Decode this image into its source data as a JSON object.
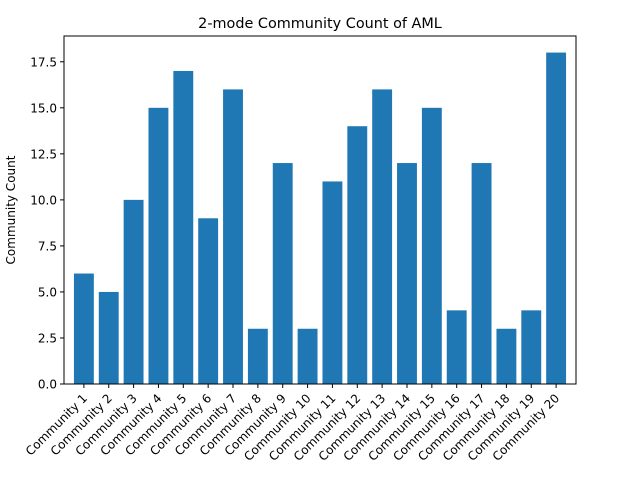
{
  "chart_data": {
    "type": "bar",
    "title": "2-mode Community Count of AML",
    "xlabel": "",
    "ylabel": "Community Count",
    "categories": [
      "Community 1",
      "Community 2",
      "Community 3",
      "Community 4",
      "Community 5",
      "Community 6",
      "Community 7",
      "Community 8",
      "Community 9",
      "Community 10",
      "Community 11",
      "Community 12",
      "Community 13",
      "Community 14",
      "Community 15",
      "Community 16",
      "Community 17",
      "Community 18",
      "Community 19",
      "Community 20"
    ],
    "values": [
      6,
      5,
      10,
      15,
      17,
      9,
      16,
      3,
      12,
      3,
      11,
      14,
      16,
      12,
      15,
      4,
      12,
      3,
      4,
      18
    ],
    "ylim": [
      0,
      18.9
    ],
    "yticks": [
      "0.0",
      "2.5",
      "5.0",
      "7.5",
      "10.0",
      "12.5",
      "15.0",
      "17.5"
    ],
    "grid": false,
    "bar_color": "#1f77b4"
  }
}
